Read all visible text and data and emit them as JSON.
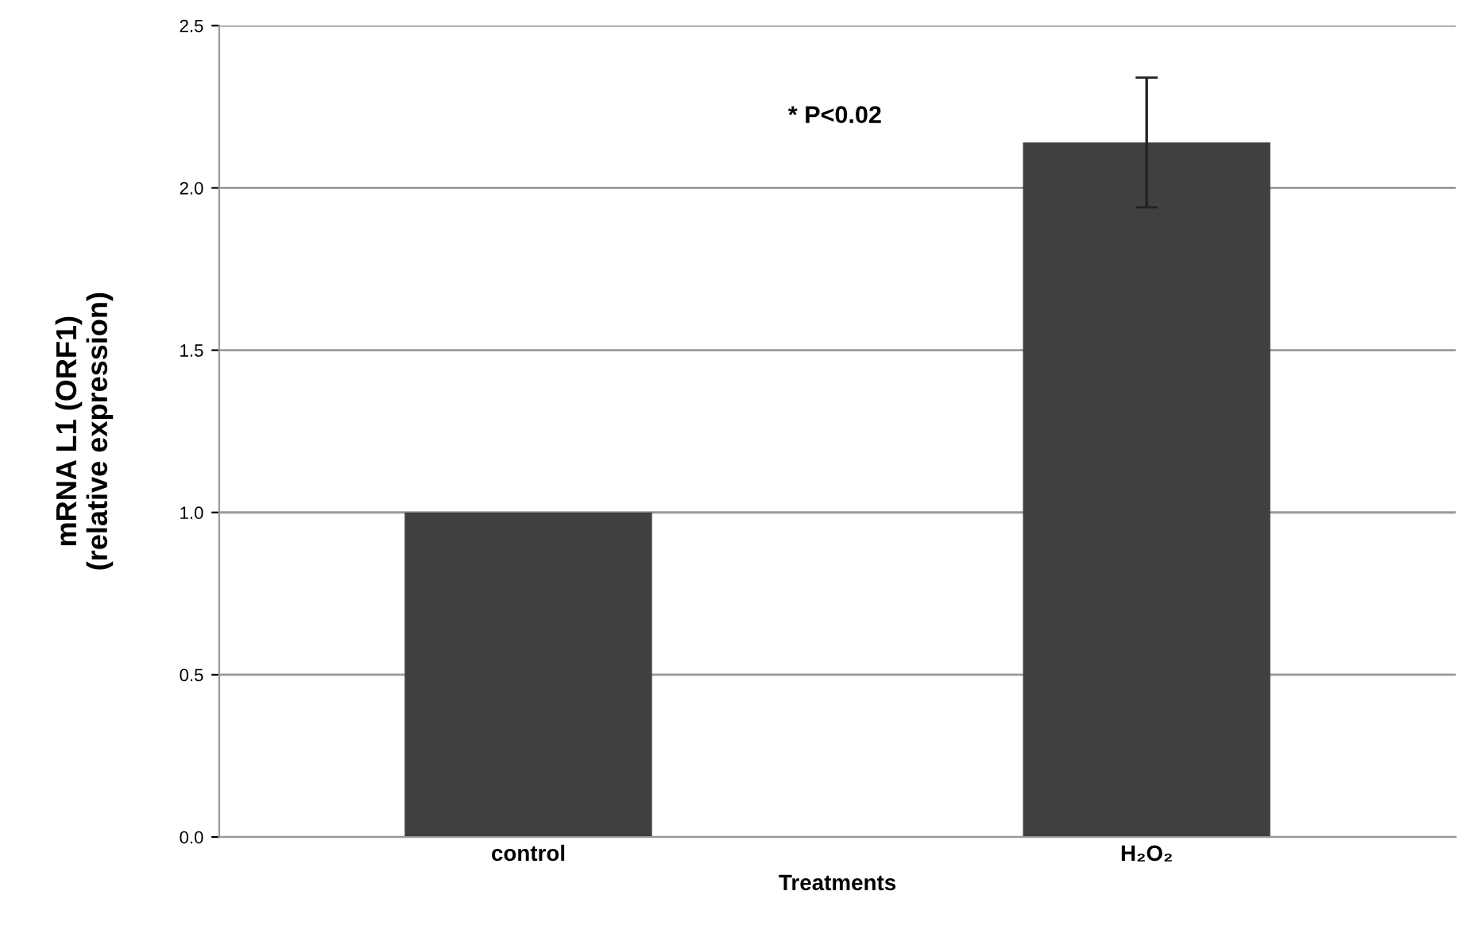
{
  "chart_data": {
    "type": "bar",
    "xlabel": "Treatments",
    "ylabel": "mRNA L1 (ORF1)\n(relative expression)",
    "categories": [
      "control",
      "H₂O₂"
    ],
    "values": [
      1.0,
      2.14
    ],
    "errors": [
      null,
      0.2
    ],
    "color": "#404040",
    "ylim": [
      0,
      2.5
    ],
    "yticks": [
      {
        "value": 0,
        "label": "0.0"
      },
      0.5,
      {
        "value": 1,
        "label": "1.0"
      },
      1.5,
      {
        "value": 2,
        "label": "2.0"
      },
      2.5
    ],
    "grid": "y",
    "annotations": [
      "* P<0.02"
    ]
  }
}
